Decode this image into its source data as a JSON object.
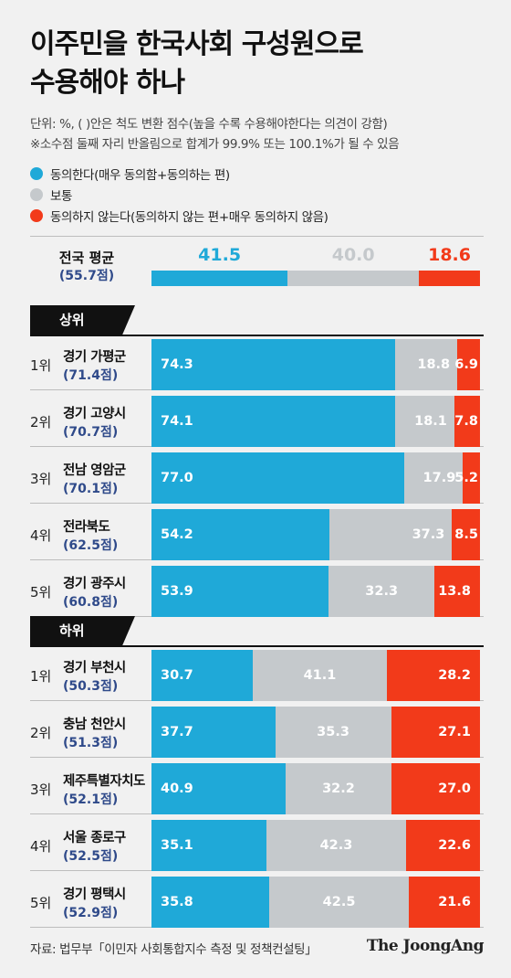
{
  "title_lines": [
    "이주민을 한국사회 구성원으로",
    "수용해야 하나"
  ],
  "notes": [
    "단위: %, ( )안은 척도 변환 점수(높을 수록 수용해야한다는 의견이 강함)",
    "※소수점 둘째 자리 반올림으로 합계가 99.9% 또는 100.1%가 될 수 있음"
  ],
  "legend": [
    {
      "label": "동의한다(매우 동의함+동의하는 편)",
      "color": "#1fa9d8"
    },
    {
      "label": "보통",
      "color": "#c5c9cc"
    },
    {
      "label": "동의하지 않는다(동의하지 않는 편+매우 동의하지 않음)",
      "color": "#f23a1a"
    }
  ],
  "chart_data": {
    "type": "bar",
    "stacked": true,
    "orientation": "horizontal",
    "series_colors": {
      "agree": "#1fa9d8",
      "neutral": "#c5c9cc",
      "disagree": "#f23a1a"
    },
    "national_average": {
      "name": "전국 평균",
      "score": "(55.7점)",
      "agree": 41.5,
      "neutral": 40.0,
      "disagree": 18.6
    },
    "groups": [
      {
        "label": "상위",
        "rows": [
          {
            "rank": "1위",
            "name": "경기 가평군",
            "score": "(71.4점)",
            "agree": 74.3,
            "neutral": 18.8,
            "disagree": 6.9
          },
          {
            "rank": "2위",
            "name": "경기 고양시",
            "score": "(70.7점)",
            "agree": 74.1,
            "neutral": 18.1,
            "disagree": 7.8
          },
          {
            "rank": "3위",
            "name": "전남 영암군",
            "score": "(70.1점)",
            "agree": 77.0,
            "neutral": 17.9,
            "disagree": 5.2
          },
          {
            "rank": "4위",
            "name": "전라북도",
            "score": "(62.5점)",
            "agree": 54.2,
            "neutral": 37.3,
            "disagree": 8.5
          },
          {
            "rank": "5위",
            "name": "경기 광주시",
            "score": "(60.8점)",
            "agree": 53.9,
            "neutral": 32.3,
            "disagree": 13.8
          }
        ]
      },
      {
        "label": "하위",
        "rows": [
          {
            "rank": "1위",
            "name": "경기 부천시",
            "score": "(50.3점)",
            "agree": 30.7,
            "neutral": 41.1,
            "disagree": 28.2
          },
          {
            "rank": "2위",
            "name": "충남 천안시",
            "score": "(51.3점)",
            "agree": 37.7,
            "neutral": 35.3,
            "disagree": 27.1
          },
          {
            "rank": "3위",
            "name": "제주특별자치도",
            "score": "(52.1점)",
            "agree": 40.9,
            "neutral": 32.2,
            "disagree": 27.0
          },
          {
            "rank": "4위",
            "name": "서울 종로구",
            "score": "(52.5점)",
            "agree": 35.1,
            "neutral": 42.3,
            "disagree": 22.6
          },
          {
            "rank": "5위",
            "name": "경기 평택시",
            "score": "(52.9점)",
            "agree": 35.8,
            "neutral": 42.5,
            "disagree": 21.6
          }
        ]
      }
    ]
  },
  "footer": {
    "source": "자료: 법무부「이민자 사회통합지수 측정 및 정책컨설팅」",
    "brand": "The JoongAng"
  }
}
